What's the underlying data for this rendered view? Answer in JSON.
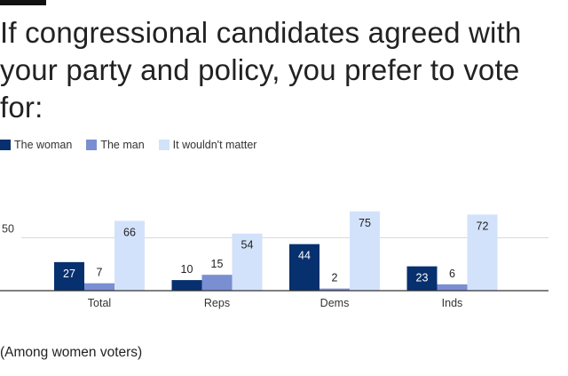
{
  "chart_data": {
    "type": "bar",
    "title": "If congressional candidates agreed with your party and policy, you prefer to vote for:",
    "categories": [
      "Total",
      "Reps",
      "Dems",
      "Inds"
    ],
    "series": [
      {
        "name": "The woman",
        "color": "#07306e",
        "label_color": "#ffffff",
        "values": [
          27,
          10,
          44,
          23
        ]
      },
      {
        "name": "The man",
        "color": "#7a8ed2",
        "label_color": "#222222",
        "values": [
          7,
          15,
          2,
          6
        ]
      },
      {
        "name": "It wouldn't matter",
        "color": "#d3e2fb",
        "label_color": "#222222",
        "values": [
          66,
          54,
          75,
          72
        ]
      }
    ],
    "yticks": [
      50
    ],
    "ytick_labels": [
      "50"
    ],
    "ylim": [
      0,
      85
    ],
    "grid": true,
    "legend_position": "top-left",
    "xlabel": "",
    "ylabel": "",
    "note": "(Among women voters)"
  }
}
